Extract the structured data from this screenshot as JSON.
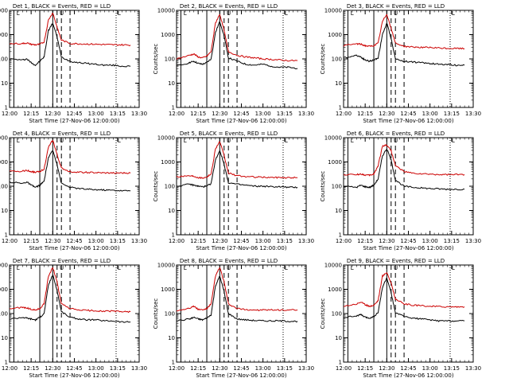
{
  "chart_data": [
    {
      "type": "line",
      "title": "Det  1, BLACK = Events, RED = LLD",
      "xlabel": "Start Time (27-Nov-06 12:00:00)",
      "ylabel": "Counts/sec",
      "ylog": true,
      "ylim": [
        1,
        10000
      ],
      "yticks": [
        "1",
        "10",
        "100",
        "1000",
        "10000"
      ],
      "xticks": [
        "12:00",
        "12:15",
        "12:30",
        "12:45",
        "13:00",
        "13:15",
        "13:30"
      ],
      "markers": [
        "L",
        "U",
        "L"
      ],
      "series": [
        {
          "color": "#000000",
          "x": [
            12.0,
            12.15,
            12.2,
            12.25,
            12.3,
            12.35,
            12.4,
            12.45,
            12.5,
            12.55,
            12.6,
            12.7,
            12.8,
            12.9,
            13.0,
            13.1,
            13.2,
            13.3,
            13.4
          ],
          "y": [
            100,
            90,
            100,
            70,
            55,
            80,
            120,
            1500,
            3000,
            800,
            120,
            80,
            70,
            65,
            60,
            55,
            55,
            50,
            50
          ]
        },
        {
          "color": "#cc0000",
          "x": [
            12.0,
            12.15,
            12.2,
            12.25,
            12.3,
            12.35,
            12.4,
            12.45,
            12.5,
            12.55,
            12.6,
            12.7,
            12.8,
            12.9,
            13.0,
            13.1,
            13.2,
            13.3,
            13.4
          ],
          "y": [
            420,
            430,
            450,
            400,
            380,
            400,
            500,
            4000,
            8000,
            2000,
            600,
            430,
            420,
            410,
            400,
            390,
            380,
            380,
            370
          ]
        }
      ]
    },
    {
      "type": "line",
      "title": "Det  2, BLACK = Events, RED = LLD",
      "xlabel": "Start Time (27-Nov-06 12:00:00)",
      "ylabel": "Counts/sec",
      "ylog": true,
      "ylim": [
        1,
        10000
      ],
      "yticks": [
        "1",
        "10",
        "100",
        "1000",
        "10000"
      ],
      "xticks": [
        "12:00",
        "12:15",
        "12:30",
        "12:45",
        "13:00",
        "13:15",
        "13:30"
      ],
      "markers": [
        "L",
        "U",
        "L"
      ],
      "series": [
        {
          "color": "#000000",
          "x": [
            12.0,
            12.15,
            12.2,
            12.25,
            12.3,
            12.35,
            12.4,
            12.45,
            12.5,
            12.55,
            12.6,
            12.7,
            12.8,
            12.9,
            13.0,
            13.1,
            13.2,
            13.3,
            13.4
          ],
          "y": [
            50,
            70,
            80,
            65,
            60,
            70,
            100,
            1200,
            3500,
            900,
            110,
            80,
            60,
            55,
            60,
            50,
            45,
            45,
            40
          ]
        },
        {
          "color": "#cc0000",
          "x": [
            12.0,
            12.15,
            12.2,
            12.25,
            12.3,
            12.35,
            12.4,
            12.45,
            12.5,
            12.55,
            12.6,
            12.7,
            12.8,
            12.9,
            13.0,
            13.1,
            13.2,
            13.3,
            13.4
          ],
          "y": [
            100,
            140,
            160,
            120,
            110,
            130,
            200,
            3000,
            7000,
            1500,
            200,
            140,
            120,
            110,
            100,
            95,
            90,
            85,
            85
          ]
        }
      ]
    },
    {
      "type": "line",
      "title": "Det  3, BLACK = Events, RED = LLD",
      "xlabel": "Start Time (27-Nov-06 12:00:00)",
      "ylabel": "Counts/sec",
      "ylog": true,
      "ylim": [
        1,
        10000
      ],
      "yticks": [
        "1",
        "10",
        "100",
        "1000",
        "10000"
      ],
      "xticks": [
        "12:00",
        "12:15",
        "12:30",
        "12:45",
        "13:00",
        "13:15",
        "13:30"
      ],
      "markers": [
        "L",
        "U",
        "L"
      ],
      "series": [
        {
          "color": "#000000",
          "x": [
            12.0,
            12.15,
            12.2,
            12.25,
            12.3,
            12.35,
            12.4,
            12.45,
            12.5,
            12.55,
            12.6,
            12.7,
            12.8,
            12.9,
            13.0,
            13.1,
            13.2,
            13.3,
            13.4
          ],
          "y": [
            110,
            140,
            120,
            90,
            80,
            90,
            110,
            1000,
            3000,
            700,
            100,
            80,
            75,
            70,
            65,
            60,
            60,
            55,
            55
          ]
        },
        {
          "color": "#cc0000",
          "x": [
            12.0,
            12.15,
            12.2,
            12.25,
            12.3,
            12.35,
            12.4,
            12.45,
            12.5,
            12.55,
            12.6,
            12.7,
            12.8,
            12.9,
            13.0,
            13.1,
            13.2,
            13.3,
            13.4
          ],
          "y": [
            350,
            420,
            400,
            350,
            330,
            350,
            450,
            3500,
            7000,
            1800,
            450,
            330,
            310,
            300,
            290,
            280,
            270,
            270,
            265
          ]
        }
      ]
    },
    {
      "type": "line",
      "title": "Det  4, BLACK = Events, RED = LLD",
      "xlabel": "Start Time (27-Nov-06 12:00:00)",
      "ylabel": "Counts/sec",
      "ylog": true,
      "ylim": [
        1,
        10000
      ],
      "yticks": [
        "1",
        "10",
        "100",
        "1000",
        "10000"
      ],
      "xticks": [
        "12:00",
        "12:15",
        "12:30",
        "12:45",
        "13:00",
        "13:15",
        "13:30"
      ],
      "markers": [
        "L",
        "U",
        "L"
      ],
      "series": [
        {
          "color": "#000000",
          "x": [
            12.0,
            12.15,
            12.2,
            12.25,
            12.3,
            12.35,
            12.4,
            12.45,
            12.5,
            12.55,
            12.6,
            12.7,
            12.8,
            12.9,
            13.0,
            13.1,
            13.2,
            13.3,
            13.4
          ],
          "y": [
            150,
            130,
            150,
            110,
            90,
            110,
            160,
            1500,
            3000,
            800,
            130,
            90,
            80,
            75,
            72,
            70,
            68,
            65,
            65
          ]
        },
        {
          "color": "#cc0000",
          "x": [
            12.0,
            12.15,
            12.2,
            12.25,
            12.3,
            12.35,
            12.4,
            12.45,
            12.5,
            12.55,
            12.6,
            12.7,
            12.8,
            12.9,
            13.0,
            13.1,
            13.2,
            13.3,
            13.4
          ],
          "y": [
            400,
            420,
            450,
            400,
            380,
            400,
            520,
            4000,
            8000,
            2000,
            550,
            400,
            380,
            370,
            360,
            350,
            350,
            350,
            350
          ]
        }
      ]
    },
    {
      "type": "line",
      "title": "Det  5, BLACK = Events, RED = LLD",
      "xlabel": "Start Time (27-Nov-06 12:00:00)",
      "ylabel": "Counts/sec",
      "ylog": true,
      "ylim": [
        1,
        10000
      ],
      "yticks": [
        "1",
        "10",
        "100",
        "1000",
        "10000"
      ],
      "xticks": [
        "12:00",
        "12:15",
        "12:30",
        "12:45",
        "13:00",
        "13:15",
        "13:30"
      ],
      "markers": [
        "L",
        "U",
        "L"
      ],
      "series": [
        {
          "color": "#000000",
          "x": [
            12.0,
            12.15,
            12.2,
            12.25,
            12.3,
            12.35,
            12.4,
            12.45,
            12.5,
            12.55,
            12.6,
            12.7,
            12.8,
            12.9,
            13.0,
            13.1,
            13.2,
            13.3,
            13.4
          ],
          "y": [
            100,
            120,
            110,
            100,
            95,
            100,
            130,
            1200,
            3000,
            800,
            140,
            120,
            110,
            100,
            100,
            95,
            95,
            90,
            90
          ]
        },
        {
          "color": "#cc0000",
          "x": [
            12.0,
            12.15,
            12.2,
            12.25,
            12.3,
            12.35,
            12.4,
            12.45,
            12.5,
            12.55,
            12.6,
            12.7,
            12.8,
            12.9,
            13.0,
            13.1,
            13.2,
            13.3,
            13.4
          ],
          "y": [
            250,
            270,
            260,
            230,
            220,
            240,
            320,
            3500,
            7000,
            1800,
            350,
            270,
            250,
            240,
            235,
            230,
            230,
            225,
            225
          ]
        }
      ]
    },
    {
      "type": "line",
      "title": "Det  6, BLACK = Events, RED = LLD",
      "xlabel": "Start Time (27-Nov-06 12:00:00)",
      "ylabel": "Counts/sec",
      "ylog": true,
      "ylim": [
        1,
        10000
      ],
      "yticks": [
        "1",
        "10",
        "100",
        "1000",
        "10000"
      ],
      "xticks": [
        "12:00",
        "12:15",
        "12:30",
        "12:45",
        "13:00",
        "13:15",
        "13:30"
      ],
      "markers": [
        "L",
        "U",
        "L"
      ],
      "series": [
        {
          "color": "#000000",
          "x": [
            12.0,
            12.15,
            12.2,
            12.25,
            12.3,
            12.35,
            12.4,
            12.45,
            12.5,
            12.55,
            12.6,
            12.7,
            12.8,
            12.9,
            13.0,
            13.1,
            13.2,
            13.3,
            13.4
          ],
          "y": [
            100,
            90,
            110,
            95,
            90,
            110,
            200,
            1800,
            3500,
            1200,
            180,
            100,
            90,
            85,
            80,
            78,
            75,
            75,
            75
          ]
        },
        {
          "color": "#cc0000",
          "x": [
            12.0,
            12.15,
            12.2,
            12.25,
            12.3,
            12.35,
            12.4,
            12.45,
            12.5,
            12.55,
            12.6,
            12.7,
            12.8,
            12.9,
            13.0,
            13.1,
            13.2,
            13.3,
            13.4
          ],
          "y": [
            300,
            300,
            320,
            290,
            280,
            320,
            700,
            4500,
            5000,
            3000,
            700,
            400,
            340,
            320,
            310,
            300,
            300,
            300,
            300
          ]
        }
      ]
    },
    {
      "type": "line",
      "title": "Det  7, BLACK = Events, RED = LLD",
      "xlabel": "Start Time (27-Nov-06 12:00:00)",
      "ylabel": "Counts/sec",
      "ylog": true,
      "ylim": [
        1,
        10000
      ],
      "yticks": [
        "1",
        "10",
        "100",
        "1000",
        "10000"
      ],
      "xticks": [
        "12:00",
        "12:15",
        "12:30",
        "12:45",
        "13:00",
        "13:15",
        "13:30"
      ],
      "markers": [
        "L",
        "U",
        "L"
      ],
      "series": [
        {
          "color": "#000000",
          "x": [
            12.0,
            12.15,
            12.2,
            12.25,
            12.3,
            12.35,
            12.4,
            12.45,
            12.5,
            12.55,
            12.6,
            12.7,
            12.8,
            12.9,
            13.0,
            13.1,
            13.2,
            13.3,
            13.4
          ],
          "y": [
            60,
            70,
            65,
            60,
            55,
            70,
            100,
            1500,
            4000,
            900,
            120,
            70,
            60,
            55,
            55,
            50,
            50,
            45,
            45
          ]
        },
        {
          "color": "#cc0000",
          "x": [
            12.0,
            12.15,
            12.2,
            12.25,
            12.3,
            12.35,
            12.4,
            12.45,
            12.5,
            12.55,
            12.6,
            12.7,
            12.8,
            12.9,
            13.0,
            13.1,
            13.2,
            13.3,
            13.4
          ],
          "y": [
            160,
            180,
            170,
            150,
            140,
            160,
            250,
            3500,
            8000,
            2000,
            250,
            160,
            140,
            135,
            130,
            125,
            125,
            120,
            120
          ]
        }
      ]
    },
    {
      "type": "line",
      "title": "Det  8, BLACK = Events, RED = LLD",
      "xlabel": "Start Time (27-Nov-06 12:00:00)",
      "ylabel": "Counts/sec",
      "ylog": true,
      "ylim": [
        1,
        10000
      ],
      "yticks": [
        "1",
        "10",
        "100",
        "1000",
        "10000"
      ],
      "xticks": [
        "12:00",
        "12:15",
        "12:30",
        "12:45",
        "13:00",
        "13:15",
        "13:30"
      ],
      "markers": [
        "L",
        "U",
        "L"
      ],
      "series": [
        {
          "color": "#000000",
          "x": [
            12.0,
            12.15,
            12.2,
            12.25,
            12.3,
            12.35,
            12.4,
            12.45,
            12.5,
            12.55,
            12.6,
            12.7,
            12.8,
            12.9,
            13.0,
            13.1,
            13.2,
            13.3,
            13.4
          ],
          "y": [
            50,
            60,
            70,
            60,
            55,
            65,
            90,
            1400,
            3500,
            800,
            100,
            60,
            55,
            52,
            50,
            50,
            50,
            48,
            48
          ]
        },
        {
          "color": "#cc0000",
          "x": [
            12.0,
            12.15,
            12.2,
            12.25,
            12.3,
            12.35,
            12.4,
            12.45,
            12.5,
            12.55,
            12.6,
            12.7,
            12.8,
            12.9,
            13.0,
            13.1,
            13.2,
            13.3,
            13.4
          ],
          "y": [
            130,
            170,
            200,
            150,
            140,
            160,
            250,
            3500,
            8000,
            2000,
            250,
            160,
            145,
            140,
            140,
            140,
            140,
            140,
            140
          ]
        }
      ]
    },
    {
      "type": "line",
      "title": "Det  9, BLACK = Events, RED = LLD",
      "xlabel": "Start Time (27-Nov-06 12:00:00)",
      "ylabel": "Counts/sec",
      "ylog": true,
      "ylim": [
        1,
        10000
      ],
      "yticks": [
        "1",
        "10",
        "100",
        "1000",
        "10000"
      ],
      "xticks": [
        "12:00",
        "12:15",
        "12:30",
        "12:45",
        "13:00",
        "13:15",
        "13:30"
      ],
      "markers": [
        "L",
        "U",
        "L"
      ],
      "series": [
        {
          "color": "#000000",
          "x": [
            12.0,
            12.15,
            12.2,
            12.25,
            12.3,
            12.35,
            12.4,
            12.45,
            12.5,
            12.55,
            12.6,
            12.7,
            12.8,
            12.9,
            13.0,
            13.1,
            13.2,
            13.3,
            13.4
          ],
          "y": [
            70,
            80,
            90,
            70,
            65,
            75,
            110,
            1200,
            3000,
            700,
            110,
            75,
            65,
            60,
            55,
            50,
            50,
            50,
            50
          ]
        },
        {
          "color": "#cc0000",
          "x": [
            12.0,
            12.15,
            12.2,
            12.25,
            12.3,
            12.35,
            12.4,
            12.45,
            12.5,
            12.55,
            12.6,
            12.7,
            12.8,
            12.9,
            13.0,
            13.1,
            13.2,
            13.3,
            13.4
          ],
          "y": [
            200,
            250,
            300,
            230,
            200,
            220,
            350,
            3500,
            5000,
            1800,
            400,
            250,
            220,
            210,
            200,
            195,
            190,
            190,
            190
          ]
        }
      ]
    }
  ]
}
